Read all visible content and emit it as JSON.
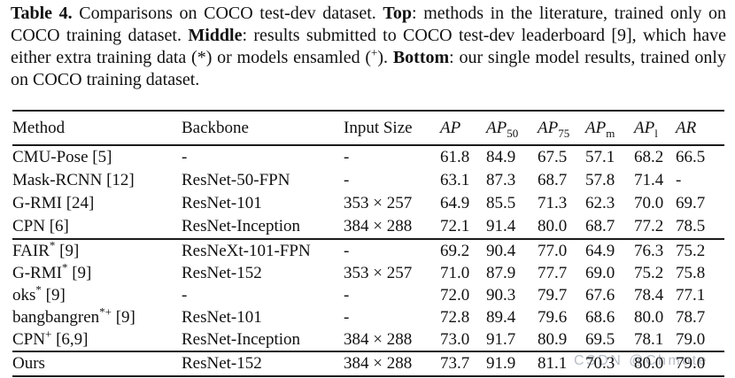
{
  "caption": {
    "segments": [
      {
        "text": "Table 4.",
        "bold": true
      },
      {
        "text": " Comparisons on COCO test-dev dataset. ",
        "bold": false
      },
      {
        "text": "Top",
        "bold": true
      },
      {
        "text": ": methods in the literature, trained only on COCO training dataset. ",
        "bold": false
      },
      {
        "text": "Middle",
        "bold": true
      },
      {
        "text": ": results submitted to COCO test-dev leaderboard [9], which have either extra training data (*) or models ensamled (",
        "bold": false
      },
      {
        "text": "+",
        "bold": false,
        "sup": true
      },
      {
        "text": "). ",
        "bold": false
      },
      {
        "text": "Bottom",
        "bold": true
      },
      {
        "text": ": our single model results, trained only on COCO training dataset.",
        "bold": false
      }
    ]
  },
  "table": {
    "columns": [
      {
        "key": "method",
        "label": "Method",
        "italic": false,
        "width": 191
      },
      {
        "key": "backbone",
        "label": "Backbone",
        "italic": false,
        "width": 183
      },
      {
        "key": "input",
        "label": "Input Size",
        "italic": false,
        "width": 109
      },
      {
        "key": "ap",
        "label": "AP",
        "sub": "",
        "italic": true,
        "width": 52
      },
      {
        "key": "ap50",
        "label": "AP",
        "sub": "50",
        "italic": true,
        "width": 58
      },
      {
        "key": "ap75",
        "label": "AP",
        "sub": "75",
        "italic": true,
        "width": 54
      },
      {
        "key": "apm",
        "label": "AP",
        "sub": "m",
        "italic": true,
        "width": 55
      },
      {
        "key": "apl",
        "label": "AP",
        "sub": "l",
        "italic": true,
        "width": 47
      },
      {
        "key": "ar",
        "label": "AR",
        "sub": "",
        "italic": true,
        "width": 55
      }
    ],
    "sections": [
      {
        "name": "top",
        "rows": [
          {
            "method": "CMU-Pose",
            "method_sup": "",
            "method_ref": "[5]",
            "backbone": "-",
            "input": "-",
            "metrics": [
              {
                "t": "61.8"
              },
              {
                "t": "84.9"
              },
              {
                "t": "67.5"
              },
              {
                "t": "57.1"
              },
              {
                "t": "68.2"
              },
              {
                "t": "66.5"
              }
            ]
          },
          {
            "method": "Mask-RCNN",
            "method_sup": "",
            "method_ref": "[12]",
            "backbone": "ResNet-50-FPN",
            "input": "-",
            "metrics": [
              {
                "t": "63.1"
              },
              {
                "t": "87.3"
              },
              {
                "t": "68.7"
              },
              {
                "t": "57.8"
              },
              {
                "t": "71.4"
              },
              {
                "t": "-"
              }
            ]
          },
          {
            "method": "G-RMI",
            "method_sup": "",
            "method_ref": "[24]",
            "backbone": "ResNet-101",
            "input": "353 × 257",
            "metrics": [
              {
                "t": "64.9"
              },
              {
                "t": "85.5"
              },
              {
                "t": "71.3"
              },
              {
                "t": "62.3"
              },
              {
                "t": "70.0"
              },
              {
                "t": "69.7"
              }
            ]
          },
          {
            "method": "CPN",
            "method_sup": "",
            "method_ref": "[6]",
            "backbone": "ResNet-Inception",
            "input": "384 × 288",
            "metrics": [
              {
                "t": "72.1"
              },
              {
                "t": "91.4"
              },
              {
                "t": "80.0"
              },
              {
                "t": "68.7"
              },
              {
                "t": "77.2"
              },
              {
                "t": "78.5"
              }
            ]
          }
        ]
      },
      {
        "name": "middle",
        "rows": [
          {
            "method": "FAIR",
            "method_sup": "*",
            "method_ref": "[9]",
            "backbone": "ResNeXt-101-FPN",
            "input": "-",
            "metrics": [
              {
                "t": "69.2"
              },
              {
                "t": "90.4"
              },
              {
                "t": "77.0"
              },
              {
                "t": "64.9"
              },
              {
                "t": "76.3"
              },
              {
                "t": "75.2"
              }
            ]
          },
          {
            "method": "G-RMI",
            "method_sup": "*",
            "method_ref": "[9]",
            "backbone": "ResNet-152",
            "input": "353 × 257",
            "metrics": [
              {
                "t": "71.0"
              },
              {
                "t": "87.9"
              },
              {
                "t": "77.7"
              },
              {
                "t": "69.0"
              },
              {
                "t": "75.2"
              },
              {
                "t": "75.8"
              }
            ]
          },
          {
            "method": "oks",
            "method_sup": "*",
            "method_ref": "[9]",
            "backbone": "-",
            "input": "-",
            "metrics": [
              {
                "t": "72.0"
              },
              {
                "t": "90.3"
              },
              {
                "t": "79.7"
              },
              {
                "t": "67.6"
              },
              {
                "t": "78.4"
              },
              {
                "t": "77.1"
              }
            ]
          },
          {
            "method": "bangbangren",
            "method_sup": "*+",
            "method_ref": "[9]",
            "backbone": "ResNet-101",
            "input": "-",
            "metrics": [
              {
                "t": "72.8"
              },
              {
                "t": "89.4"
              },
              {
                "t": "79.6"
              },
              {
                "t": "68.6"
              },
              {
                "t": "80.0",
                "b": true
              },
              {
                "t": "78.7"
              }
            ]
          },
          {
            "method": "CPN",
            "method_sup": "+",
            "method_ref": "[6,9]",
            "backbone": "ResNet-Inception",
            "input": "384 × 288",
            "metrics": [
              {
                "t": "73.0"
              },
              {
                "t": "91.7",
                "b": true
              },
              {
                "t": "80.9"
              },
              {
                "t": "69.5"
              },
              {
                "t": "78.1"
              },
              {
                "t": "79.0",
                "b": true
              }
            ]
          }
        ]
      },
      {
        "name": "bottom",
        "rows": [
          {
            "method": "Ours",
            "method_sup": "",
            "method_ref": "",
            "backbone": "ResNet-152",
            "input": "384 × 288",
            "metrics": [
              {
                "t": "73.7",
                "b": true
              },
              {
                "t": "91.9",
                "b": true
              },
              {
                "t": "81.1",
                "b": true
              },
              {
                "t": "70.3",
                "b": true
              },
              {
                "t": "80.0",
                "b": true
              },
              {
                "t": "79.0",
                "b": true
              }
            ]
          }
        ]
      }
    ]
  },
  "watermark": {
    "text": "CSDN @Chmote"
  },
  "colors": {
    "text": "#111111",
    "rule": "#1b1b1b",
    "watermark": "#aeb5bf",
    "background": "#ffffff"
  }
}
